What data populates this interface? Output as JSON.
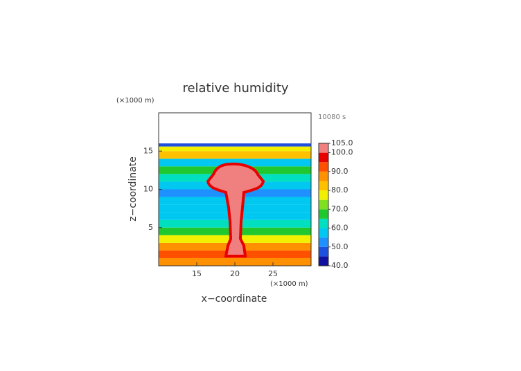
{
  "chart_data": {
    "type": "contour",
    "title": "relative humidity",
    "time_label": "10080 s",
    "x_label": "x−coordinate",
    "y_label": "z−coordinate",
    "x_unit": "(×1000 m)",
    "y_unit": "(×1000 m)",
    "xlim": [
      10,
      30
    ],
    "xticks": [
      15,
      20,
      25
    ],
    "ylim": [
      0,
      20
    ],
    "yticks": [
      5,
      10,
      15
    ],
    "z_edges": [
      0,
      1,
      2,
      3,
      4,
      5,
      6,
      7,
      8,
      9,
      10,
      11,
      12,
      13,
      14,
      15,
      15.6,
      16
    ],
    "values": [
      87,
      92,
      86,
      78,
      68,
      63,
      58,
      57,
      56,
      53,
      58,
      62,
      67,
      58,
      83,
      76,
      48
    ],
    "levels": [
      40,
      45,
      50,
      55,
      60,
      65,
      70,
      75,
      80,
      85,
      90,
      95,
      100,
      105
    ],
    "colors": [
      "#1010a0",
      "#1e50e0",
      "#1e90ff",
      "#00c8f0",
      "#00e0c0",
      "#20c830",
      "#80e020",
      "#f0f000",
      "#ffc000",
      "#ff9000",
      "#ff5000",
      "#e80000",
      "#f08080"
    ],
    "colorbar_ticks": [
      {
        "value": 105,
        "label": "105.0"
      },
      {
        "value": 100,
        "label": "100.0"
      },
      {
        "value": 90,
        "label": "90.0"
      },
      {
        "value": 80,
        "label": "80.0"
      },
      {
        "value": 70,
        "label": "70.0"
      },
      {
        "value": 60,
        "label": "60.0"
      },
      {
        "value": 50,
        "label": "50.0"
      },
      {
        "value": 40,
        "label": "40.0"
      }
    ]
  }
}
